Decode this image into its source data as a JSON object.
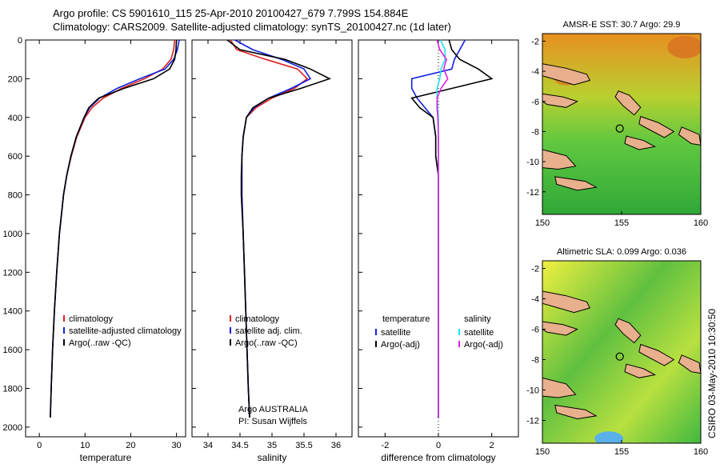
{
  "header": {
    "line1": "Argo profile: CS 5901610_115 25-Apr-2010 20100427_679 7.799S 154.884E",
    "line2": "Climatology: CARS2009. Satellite-adjusted climatology: synTS_20100427.nc (1d later)"
  },
  "footer": {
    "credit": "CSIRO 03-May-2010 10:30:50"
  },
  "colors": {
    "climatology": "#e02020",
    "satellite": "#1020e0",
    "argo": "#000000",
    "salinity_satellite": "#20e0f0",
    "salinity_argo": "#e020e0",
    "land": "#e8b08c"
  },
  "chart_data": [
    {
      "type": "line",
      "panel": "temperature",
      "xlabel": "temperature",
      "ylabel": "",
      "xlim": [
        -3,
        32
      ],
      "ylim": [
        2050,
        0
      ],
      "xticks": [
        "0",
        "10",
        "20",
        "30"
      ],
      "yticks": [
        "0",
        "200",
        "400",
        "600",
        "800",
        "1000",
        "1200",
        "1400",
        "1600",
        "1800",
        "2000"
      ],
      "legend_position": "lower-right",
      "depth": [
        0,
        50,
        100,
        150,
        200,
        250,
        300,
        350,
        400,
        500,
        600,
        700,
        800,
        1000,
        1200,
        1400,
        1600,
        1800,
        1950
      ],
      "series": [
        {
          "name": "climatology",
          "values": [
            29.6,
            29.4,
            28.8,
            27.0,
            23.0,
            18.0,
            14.0,
            11.5,
            10.0,
            8.2,
            7.0,
            6.0,
            5.3,
            4.4,
            3.8,
            3.3,
            2.9,
            2.6,
            2.4
          ]
        },
        {
          "name": "satellite-adjusted climatology",
          "values": [
            30.6,
            30.2,
            29.4,
            27.5,
            22.0,
            17.0,
            13.2,
            11.0,
            9.8,
            8.1,
            6.9,
            6.0,
            5.3,
            4.4,
            3.8,
            3.3,
            2.9,
            2.6,
            2.4
          ]
        },
        {
          "name": "Argo(..raw -QC)",
          "values": [
            30.0,
            29.9,
            29.6,
            28.5,
            25.0,
            18.5,
            13.0,
            10.8,
            9.8,
            8.1,
            6.9,
            6.0,
            5.3,
            4.4,
            3.8,
            3.3,
            2.9,
            2.6,
            2.4
          ]
        }
      ]
    },
    {
      "type": "line",
      "panel": "salinity",
      "xlabel": "salinity",
      "ylabel": "",
      "xlim": [
        33.75,
        36.25
      ],
      "ylim": [
        2050,
        0
      ],
      "xticks": [
        "34",
        "34.5",
        "35",
        "35.5",
        "36"
      ],
      "legend_position": "lower-right",
      "annotations": [
        "Argo AUSTRALIA",
        "PI: Susan Wijffels"
      ],
      "depth": [
        0,
        50,
        100,
        150,
        200,
        250,
        300,
        350,
        400,
        500,
        600,
        700,
        800,
        1000,
        1200,
        1400,
        1600,
        1800,
        1950
      ],
      "series": [
        {
          "name": "climatology",
          "values": [
            34.35,
            34.45,
            34.9,
            35.4,
            35.55,
            35.35,
            35.0,
            34.75,
            34.6,
            34.55,
            34.53,
            34.53,
            34.53,
            34.55,
            34.57,
            34.59,
            34.61,
            34.63,
            34.65
          ]
        },
        {
          "name": "satellite adj. clim.",
          "values": [
            34.42,
            34.7,
            35.15,
            35.5,
            35.6,
            35.3,
            34.95,
            34.72,
            34.6,
            34.55,
            34.53,
            34.53,
            34.53,
            34.55,
            34.57,
            34.59,
            34.61,
            34.63,
            34.65
          ]
        },
        {
          "name": "Argo(..raw -QC)",
          "values": [
            34.3,
            34.5,
            35.2,
            35.6,
            35.9,
            35.45,
            34.95,
            34.7,
            34.6,
            34.55,
            34.53,
            34.52,
            34.52,
            34.55,
            34.57,
            34.59,
            34.61,
            34.63,
            34.65
          ]
        }
      ]
    },
    {
      "type": "line",
      "panel": "difference",
      "xlabel": "difference from climatology",
      "ylabel": "",
      "xlim": [
        -3,
        3
      ],
      "ylim": [
        2050,
        0
      ],
      "xticks": [
        "-2",
        "0",
        "2"
      ],
      "legend_position": "lower-center",
      "legend_groups": [
        "temperature",
        "salinity"
      ],
      "depth": [
        0,
        50,
        100,
        150,
        200,
        250,
        300,
        350,
        400,
        500,
        600,
        700,
        800,
        1000,
        1200,
        1400,
        1600,
        1800,
        1950
      ],
      "series": [
        {
          "name": "temperature satellite",
          "values": [
            1.0,
            0.8,
            0.6,
            0.5,
            -1.0,
            -1.0,
            -0.8,
            -0.5,
            -0.2,
            -0.1,
            -0.1,
            0.0,
            0.0,
            0.0,
            0.0,
            0.0,
            0.0,
            0.0,
            0.0
          ]
        },
        {
          "name": "temperature Argo(-adj)",
          "values": [
            0.4,
            0.5,
            0.8,
            1.5,
            2.0,
            0.5,
            -1.0,
            -0.7,
            -0.2,
            -0.1,
            -0.1,
            0.0,
            0.0,
            0.0,
            0.0,
            0.0,
            0.0,
            0.0,
            0.0
          ]
        },
        {
          "name": "salinity satellite",
          "values": [
            0.07,
            0.25,
            0.25,
            0.1,
            0.05,
            -0.05,
            -0.05,
            -0.03,
            0.0,
            0.0,
            0.0,
            0.0,
            0.0,
            0.0,
            0.0,
            0.0,
            0.0,
            0.0,
            0.0
          ]
        },
        {
          "name": "salinity Argo(-adj)",
          "values": [
            -0.05,
            0.05,
            0.3,
            0.2,
            0.35,
            0.1,
            -0.05,
            -0.05,
            -0.02,
            0.0,
            0.0,
            0.0,
            0.0,
            0.0,
            0.0,
            0.0,
            0.0,
            0.0,
            0.0
          ]
        }
      ]
    },
    {
      "type": "heatmap",
      "panel": "sst_map",
      "title": "AMSR-E SST: 30.7 Argo: 29.9",
      "xlim": [
        150,
        160
      ],
      "ylim": [
        -13.5,
        -1.5
      ],
      "xticks": [
        "150",
        "155",
        "160"
      ],
      "yticks": [
        "-2",
        "-4",
        "-6",
        "-8",
        "-10",
        "-12"
      ],
      "marker": {
        "lon": 154.884,
        "lat": -7.799
      }
    },
    {
      "type": "heatmap",
      "panel": "sla_map",
      "title": "Altimetric SLA: 0.099 Argo: 0.036",
      "xlim": [
        150,
        160
      ],
      "ylim": [
        -13.5,
        -1.5
      ],
      "xticks": [
        "150",
        "155",
        "160"
      ],
      "yticks": [
        "-2",
        "-4",
        "-6",
        "-8",
        "-10",
        "-12"
      ],
      "marker": {
        "lon": 154.884,
        "lat": -7.799
      }
    }
  ]
}
